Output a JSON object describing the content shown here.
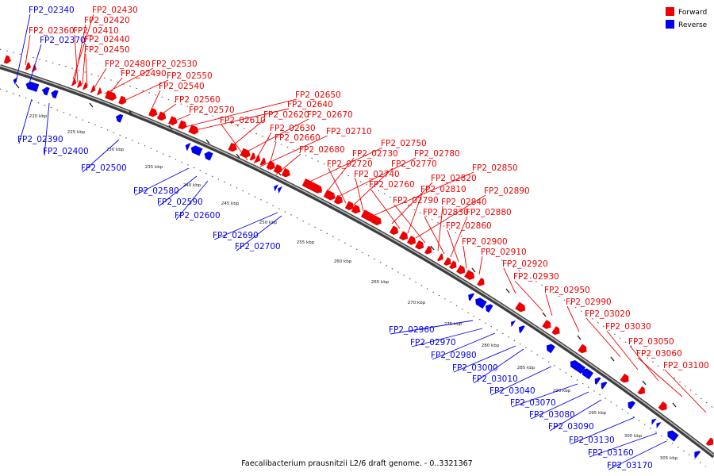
{
  "caption": "Faecalibacterium prausnitzii L2/6 draft genome. - 0..3321367",
  "legend": [
    {
      "label": "Forward",
      "color": "#ee0000"
    },
    {
      "label": "Reverse",
      "color": "#0000ee"
    }
  ],
  "ticks": [
    "220 kbp",
    "225 kbp",
    "230 kbp",
    "235 kbp",
    "240 kbp",
    "245 kbp",
    "250 kbp",
    "255 kbp",
    "260 kbp",
    "265 kbp",
    "270 kbp",
    "275 kbp",
    "280 kbp",
    "285 kbp",
    "290 kbp",
    "295 kbp",
    "300 kbp",
    "305 kbp"
  ],
  "forward_genes": [
    "FP2_02430",
    "FP2_02420",
    "FP2_02360",
    "FP2_02410",
    "FP2_02440",
    "FP2_02450",
    "FP2_02480",
    "FP2_02530",
    "FP2_02490",
    "FP2_02550",
    "FP2_02540",
    "FP2_02560",
    "FP2_02570",
    "FP2_02650",
    "FP2_02640",
    "FP2_02620",
    "FP2_02670",
    "FP2_02610",
    "FP2_02630",
    "FP2_02710",
    "FP2_02660",
    "FP2_02680",
    "FP2_02750",
    "FP2_02730",
    "FP2_02780",
    "FP2_02720",
    "FP2_02770",
    "FP2_02740",
    "FP2_02850",
    "FP2_02820",
    "FP2_02760",
    "FP2_02810",
    "FP2_02890",
    "FP2_02790",
    "FP2_02840",
    "FP2_02830",
    "FP2_02880",
    "FP2_02860",
    "FP2_02900",
    "FP2_02910",
    "FP2_02920",
    "FP2_02930",
    "FP2_02950",
    "FP2_02990",
    "FP2_03020",
    "FP2_03030",
    "FP2_03050",
    "FP2_03060",
    "FP2_03100"
  ],
  "reverse_genes": [
    "FP2_02340",
    "FP2_02370",
    "FP2_02390",
    "FP2_02400",
    "FP2_02500",
    "FP2_02580",
    "FP2_02590",
    "FP2_02600",
    "FP2_02690",
    "FP2_02700",
    "FP2_02960",
    "FP2_02970",
    "FP2_02980",
    "FP2_03000",
    "FP2_03010",
    "FP2_03040",
    "FP2_03070",
    "FP2_03080",
    "FP2_03090",
    "FP2_03130",
    "FP2_03160",
    "FP2_03170"
  ]
}
